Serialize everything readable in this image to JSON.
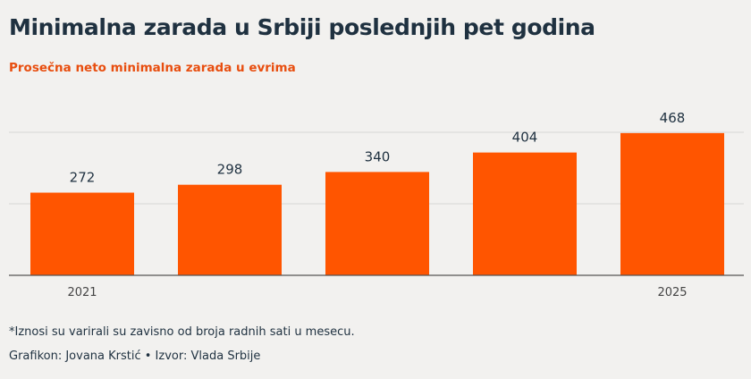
{
  "title": "Minimalna zarada u Srbiji poslednjih pet godina",
  "subtitle": "Prosečna neto minimalna zarada u evrima",
  "footnote": "*Iznosi su varirali su zavisno od broja radnih sati u mesecu.",
  "credits": "Grafikon: Jovana Krstić • Izvor: Vlada Srbije",
  "colors": {
    "bar": "#ff5500",
    "text": "#1f3140",
    "accent": "#e84e0f",
    "grid": "#d6d6d6"
  },
  "chart_data": {
    "type": "bar",
    "categories": [
      "2021",
      "",
      "",
      "",
      "2025"
    ],
    "values": [
      272,
      298,
      340,
      404,
      468
    ],
    "data_labels": [
      "272",
      "298",
      "340",
      "404",
      "468"
    ],
    "title": "Minimalna zarada u Srbiji poslednjih pet godina",
    "subtitle": "Prosečna neto minimalna zarada u evrima",
    "ylim": [
      0,
      500
    ],
    "grid": true
  }
}
